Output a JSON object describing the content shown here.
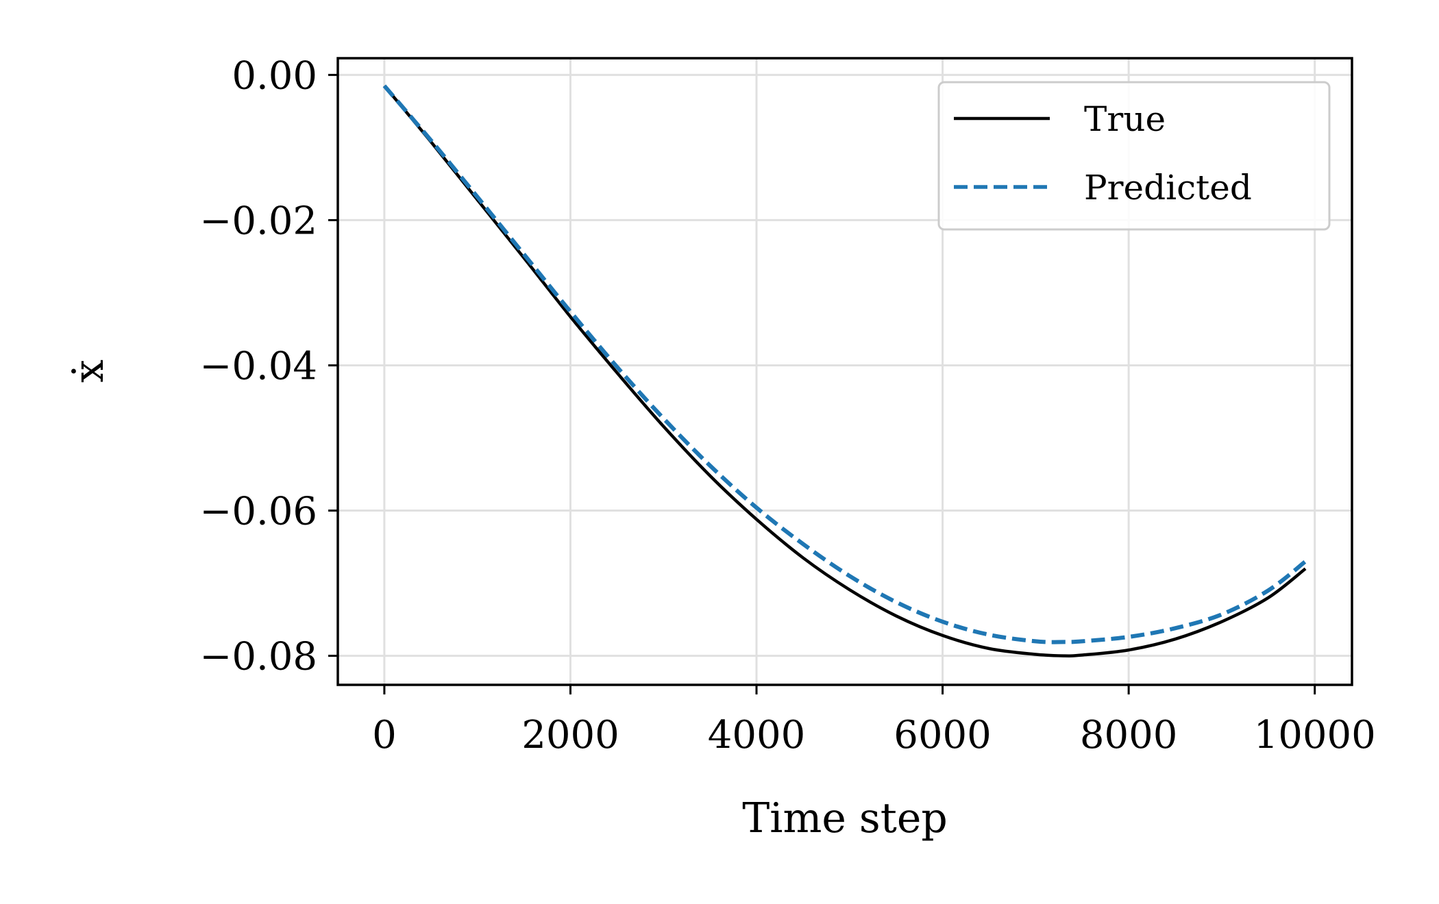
{
  "chart_data": {
    "type": "line",
    "title": "",
    "xlabel": "Time step",
    "ylabel": "ẋ",
    "xlim": [
      -500,
      10400
    ],
    "ylim": [
      -0.084,
      0.0023
    ],
    "grid": true,
    "legend_position": "top-right",
    "x_ticks": [
      0,
      2000,
      4000,
      6000,
      8000,
      10000
    ],
    "x_tick_labels": [
      "0",
      "2000",
      "4000",
      "6000",
      "8000",
      "10000"
    ],
    "y_ticks": [
      0.0,
      -0.02,
      -0.04,
      -0.06,
      -0.08
    ],
    "y_tick_labels": [
      "0.00",
      "−0.02",
      "−0.04",
      "−0.06",
      "−0.08"
    ],
    "series": [
      {
        "name": "True",
        "color": "#000000",
        "style": "solid",
        "x": [
          0,
          500,
          1000,
          1500,
          2000,
          2500,
          3000,
          3500,
          4000,
          4500,
          5000,
          5500,
          6000,
          6500,
          7000,
          7300,
          7500,
          8000,
          8500,
          9000,
          9500,
          9900
        ],
        "y": [
          -0.0015,
          -0.0092,
          -0.0172,
          -0.0252,
          -0.0333,
          -0.041,
          -0.0484,
          -0.0552,
          -0.0612,
          -0.0665,
          -0.0709,
          -0.0745,
          -0.0772,
          -0.079,
          -0.0798,
          -0.08,
          -0.0799,
          -0.0792,
          -0.0777,
          -0.0753,
          -0.072,
          -0.068
        ]
      },
      {
        "name": "Predicted",
        "color": "#1f77b4",
        "style": "dashed",
        "x": [
          0,
          500,
          1000,
          1500,
          2000,
          2500,
          3000,
          3500,
          4000,
          4500,
          5000,
          5500,
          6000,
          6500,
          7000,
          7300,
          7500,
          8000,
          8500,
          9000,
          9500,
          9900
        ],
        "y": [
          -0.0015,
          -0.009,
          -0.0168,
          -0.0247,
          -0.0326,
          -0.0402,
          -0.0473,
          -0.0538,
          -0.0596,
          -0.0646,
          -0.069,
          -0.0726,
          -0.0753,
          -0.0771,
          -0.078,
          -0.0781,
          -0.078,
          -0.0774,
          -0.0762,
          -0.0743,
          -0.071,
          -0.067
        ]
      }
    ]
  }
}
